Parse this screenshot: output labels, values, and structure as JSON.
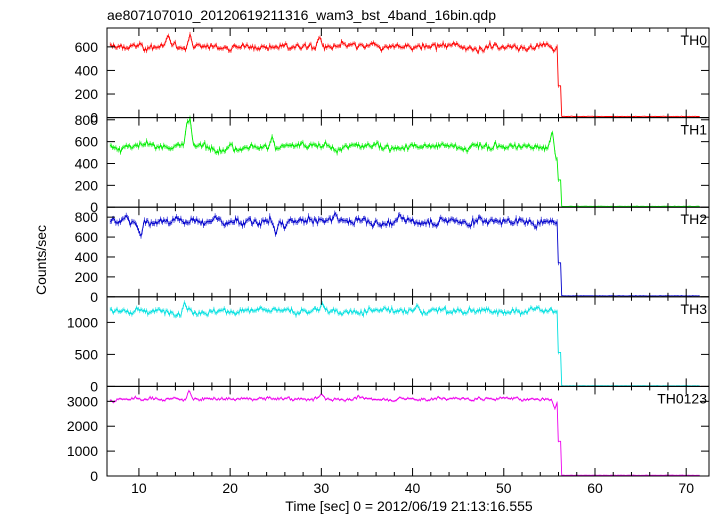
{
  "chart_data": {
    "type": "line",
    "title": "ae807107010_20120619211316_wam3_bst_4band_16bin.qdp",
    "xlabel": "Time [sec] 0 = 2012/06/19 21:13:16.555",
    "ylabel": "Counts/sec",
    "xlim": [
      6.5,
      72.5
    ],
    "x_ticks": [
      10,
      20,
      30,
      40,
      50,
      60,
      70
    ],
    "drop_time": 56.0,
    "time_step": 0.125,
    "panels": [
      {
        "name": "TH0",
        "color": "#ff0000",
        "ylim": [
          0,
          760
        ],
        "y_ticks": [
          0,
          200,
          400,
          600
        ],
        "level": 600,
        "noise": 30,
        "tail": 10,
        "features": [
          {
            "t": 13.2,
            "v": 700
          },
          {
            "t": 15.6,
            "v": 710
          },
          {
            "t": 29.8,
            "v": 690
          },
          {
            "t": 55.5,
            "v": 560
          }
        ]
      },
      {
        "name": "TH1",
        "color": "#00ee00",
        "ylim": [
          0,
          820
        ],
        "y_ticks": [
          0,
          200,
          400,
          600,
          800
        ],
        "level": 555,
        "noise": 35,
        "tail": 8,
        "features": [
          {
            "t": 15.3,
            "v": 800
          },
          {
            "t": 15.6,
            "v": 820
          },
          {
            "t": 24.6,
            "v": 650
          },
          {
            "t": 55.3,
            "v": 700
          },
          {
            "t": 55.8,
            "v": 420
          }
        ]
      },
      {
        "name": "TH2",
        "color": "#0000cc",
        "ylim": [
          0,
          900
        ],
        "y_ticks": [
          0,
          200,
          400,
          600,
          800
        ],
        "level": 760,
        "noise": 45,
        "tail": 10,
        "features": [
          {
            "t": 8.6,
            "v": 820
          },
          {
            "t": 10.2,
            "v": 600
          },
          {
            "t": 25.0,
            "v": 620
          },
          {
            "t": 26.0,
            "v": 680
          },
          {
            "t": 31.5,
            "v": 850
          },
          {
            "t": 55.7,
            "v": 730
          }
        ]
      },
      {
        "name": "TH3",
        "color": "#00e0e0",
        "ylim": [
          0,
          1400
        ],
        "y_ticks": [
          0,
          500,
          1000
        ],
        "level": 1180,
        "noise": 55,
        "tail": 10,
        "features": [
          {
            "t": 15.0,
            "v": 1330
          },
          {
            "t": 30.1,
            "v": 1300
          },
          {
            "t": 40.5,
            "v": 1280
          },
          {
            "t": 55.5,
            "v": 1150
          }
        ]
      },
      {
        "name": "TH0123",
        "color": "#ee00ee",
        "ylim": [
          0,
          3600
        ],
        "y_ticks": [
          0,
          1000,
          2000,
          3000
        ],
        "level": 3100,
        "noise": 70,
        "tail": 30,
        "features": [
          {
            "t": 7.2,
            "v": 2950
          },
          {
            "t": 15.5,
            "v": 3450
          },
          {
            "t": 30.0,
            "v": 3300
          },
          {
            "t": 55.6,
            "v": 2700
          }
        ]
      }
    ]
  }
}
